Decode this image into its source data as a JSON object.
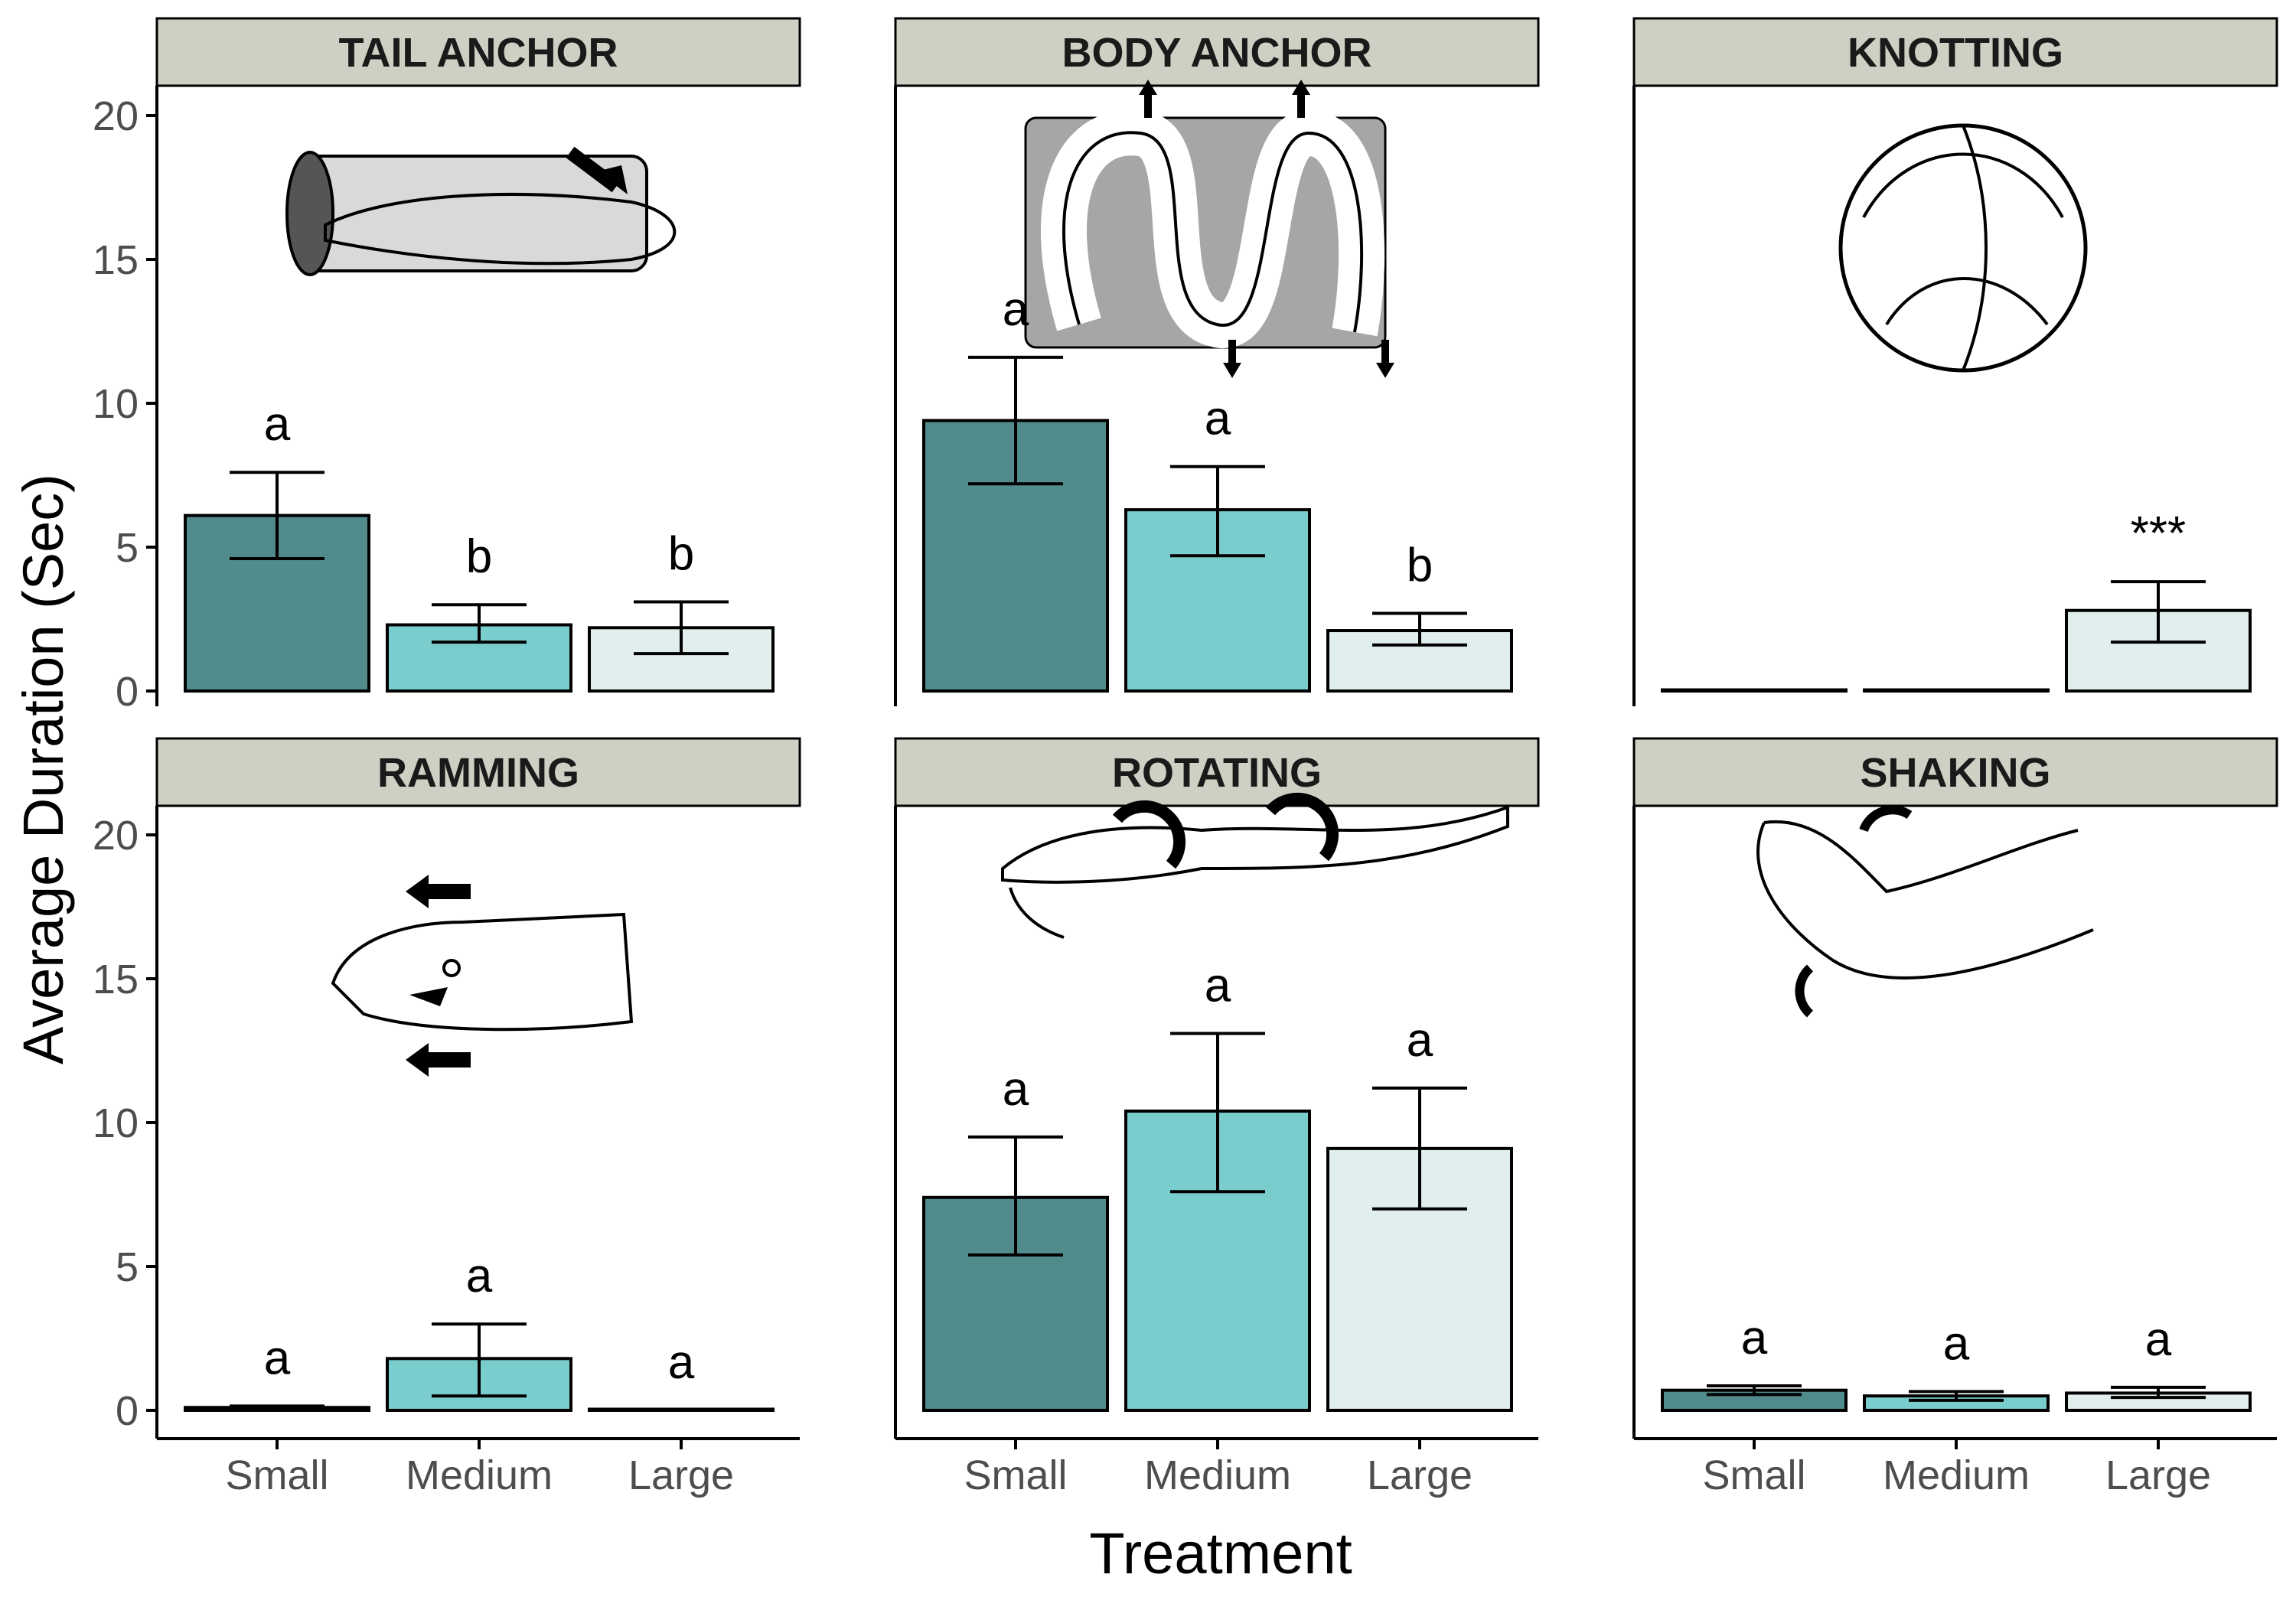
{
  "figure": {
    "ylabel": "Average Duration (Sec)",
    "xlabel": "Treatment"
  },
  "colors": {
    "small": "#528b8b",
    "medium": "#79cdcd",
    "large": "#e0eeee",
    "strip": "#cfcfc4",
    "axis": "#000000"
  },
  "chart_data": {
    "type": "bar",
    "categories": [
      "Small",
      "Medium",
      "Large"
    ],
    "ylim": [
      0,
      21
    ],
    "yticks": [
      0,
      5,
      10,
      15,
      20
    ],
    "grid": false,
    "panels": [
      {
        "title": "TAIL ANCHOR",
        "illustration": "eel-tail-anchor-in-tube",
        "values": [
          6.1,
          2.3,
          2.2
        ],
        "err_low": [
          4.6,
          1.7,
          1.3
        ],
        "err_high": [
          7.6,
          3.0,
          3.1
        ],
        "labels": [
          "a",
          "b",
          "b"
        ]
      },
      {
        "title": "BODY ANCHOR",
        "illustration": "eel-body-anchor-coils",
        "values": [
          9.4,
          6.3,
          2.1
        ],
        "err_low": [
          7.2,
          4.7,
          1.6
        ],
        "err_high": [
          11.6,
          7.8,
          2.7
        ],
        "labels": [
          "a",
          "a",
          "b"
        ]
      },
      {
        "title": "KNOTTING",
        "illustration": "eel-knot",
        "values": [
          0,
          0,
          2.8
        ],
        "err_low": [
          0,
          0,
          1.7
        ],
        "err_high": [
          0,
          0,
          3.8
        ],
        "labels": [
          "",
          "",
          "***"
        ]
      },
      {
        "title": "RAMMING",
        "illustration": "eel-head-ramming",
        "values": [
          0.1,
          1.8,
          0.0
        ],
        "err_low": [
          0.05,
          0.5,
          0.0
        ],
        "err_high": [
          0.15,
          3.0,
          0.0
        ],
        "labels": [
          "a",
          "a",
          "a"
        ]
      },
      {
        "title": "ROTATING",
        "illustration": "eel-rotating",
        "values": [
          7.4,
          10.4,
          9.1
        ],
        "err_low": [
          5.4,
          7.6,
          7.0
        ],
        "err_high": [
          9.5,
          13.1,
          11.2
        ],
        "labels": [
          "a",
          "a",
          "a"
        ]
      },
      {
        "title": "SHAKING",
        "illustration": "eel-head-shaking",
        "values": [
          0.7,
          0.5,
          0.6
        ],
        "err_low": [
          0.55,
          0.35,
          0.45
        ],
        "err_high": [
          0.85,
          0.65,
          0.8
        ],
        "labels": [
          "a",
          "a",
          "a"
        ]
      }
    ]
  }
}
